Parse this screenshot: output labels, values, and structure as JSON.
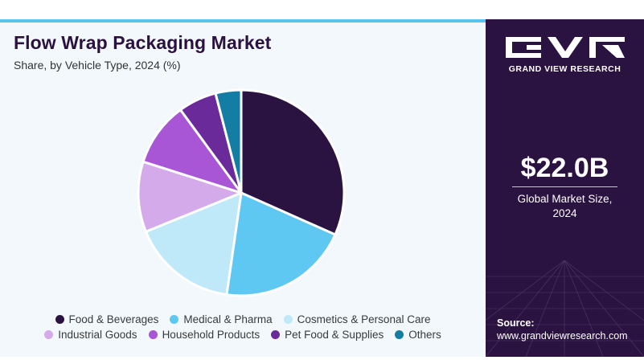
{
  "header": {
    "title": "Flow Wrap Packaging Market",
    "subtitle": "Share, by Vehicle Type, 2024 (%)"
  },
  "chart_data": {
    "type": "pie",
    "categories": [
      "Food & Beverages",
      "Medical & Pharma",
      "Cosmetics & Personal Care",
      "Industrial Goods",
      "Household Products",
      "Pet Food & Supplies",
      "Others"
    ],
    "values": [
      31.5,
      20.5,
      16.5,
      11,
      10,
      6,
      4
    ],
    "colors": [
      "#2b1341",
      "#5ec8f2",
      "#bfe8f9",
      "#d4aaeb",
      "#a855d6",
      "#6a2a99",
      "#137da3"
    ],
    "legend_position": "bottom"
  },
  "sidebar": {
    "logo_text": "GRAND VIEW RESEARCH",
    "market_value": "$22.0B",
    "market_label_line1": "Global Market Size,",
    "market_label_line2": "2024",
    "source_label": "Source:",
    "source_url": "www.grandviewresearch.com"
  }
}
